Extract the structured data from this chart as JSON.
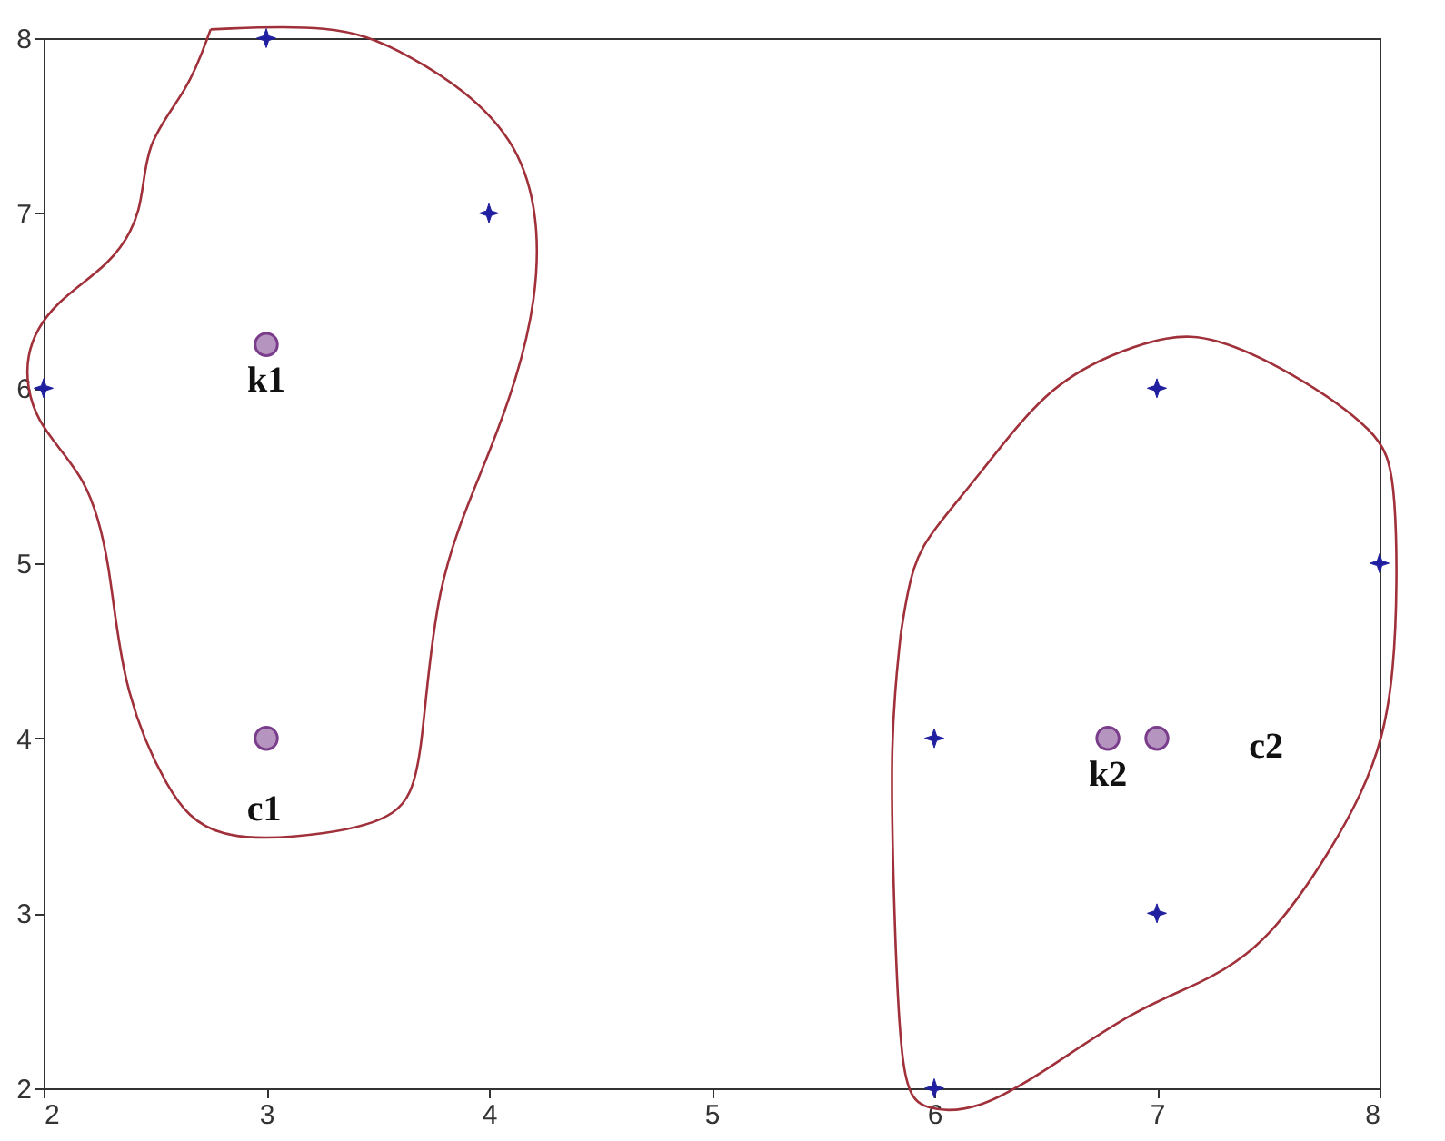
{
  "chart_data": {
    "type": "scatter",
    "series": [
      {
        "color": "#1f1fa0",
        "marker": "star",
        "x": [
          3,
          4,
          2,
          6,
          7,
          8,
          7,
          6
        ],
        "values": [
          8,
          7,
          6,
          4,
          6,
          5,
          3,
          2
        ]
      },
      {
        "color": "#7a3d8c",
        "marker": "circle",
        "x": [
          3,
          3,
          6.78,
          7
        ],
        "values": [
          6.25,
          4,
          4,
          4
        ]
      }
    ],
    "annotations": [
      {
        "text": "k1",
        "x": 3,
        "y": 6.25
      },
      "c1",
      {
        "text": "k2",
        "x": 6.78,
        "y": 4
      },
      "c2"
    ],
    "xlim": [
      2,
      8
    ],
    "ylim": [
      2,
      8
    ],
    "xticks": [
      2,
      3,
      4,
      5,
      6,
      7,
      8
    ],
    "yticks": [
      2,
      3,
      4,
      5,
      6,
      7,
      8
    ],
    "grid": false
  }
}
